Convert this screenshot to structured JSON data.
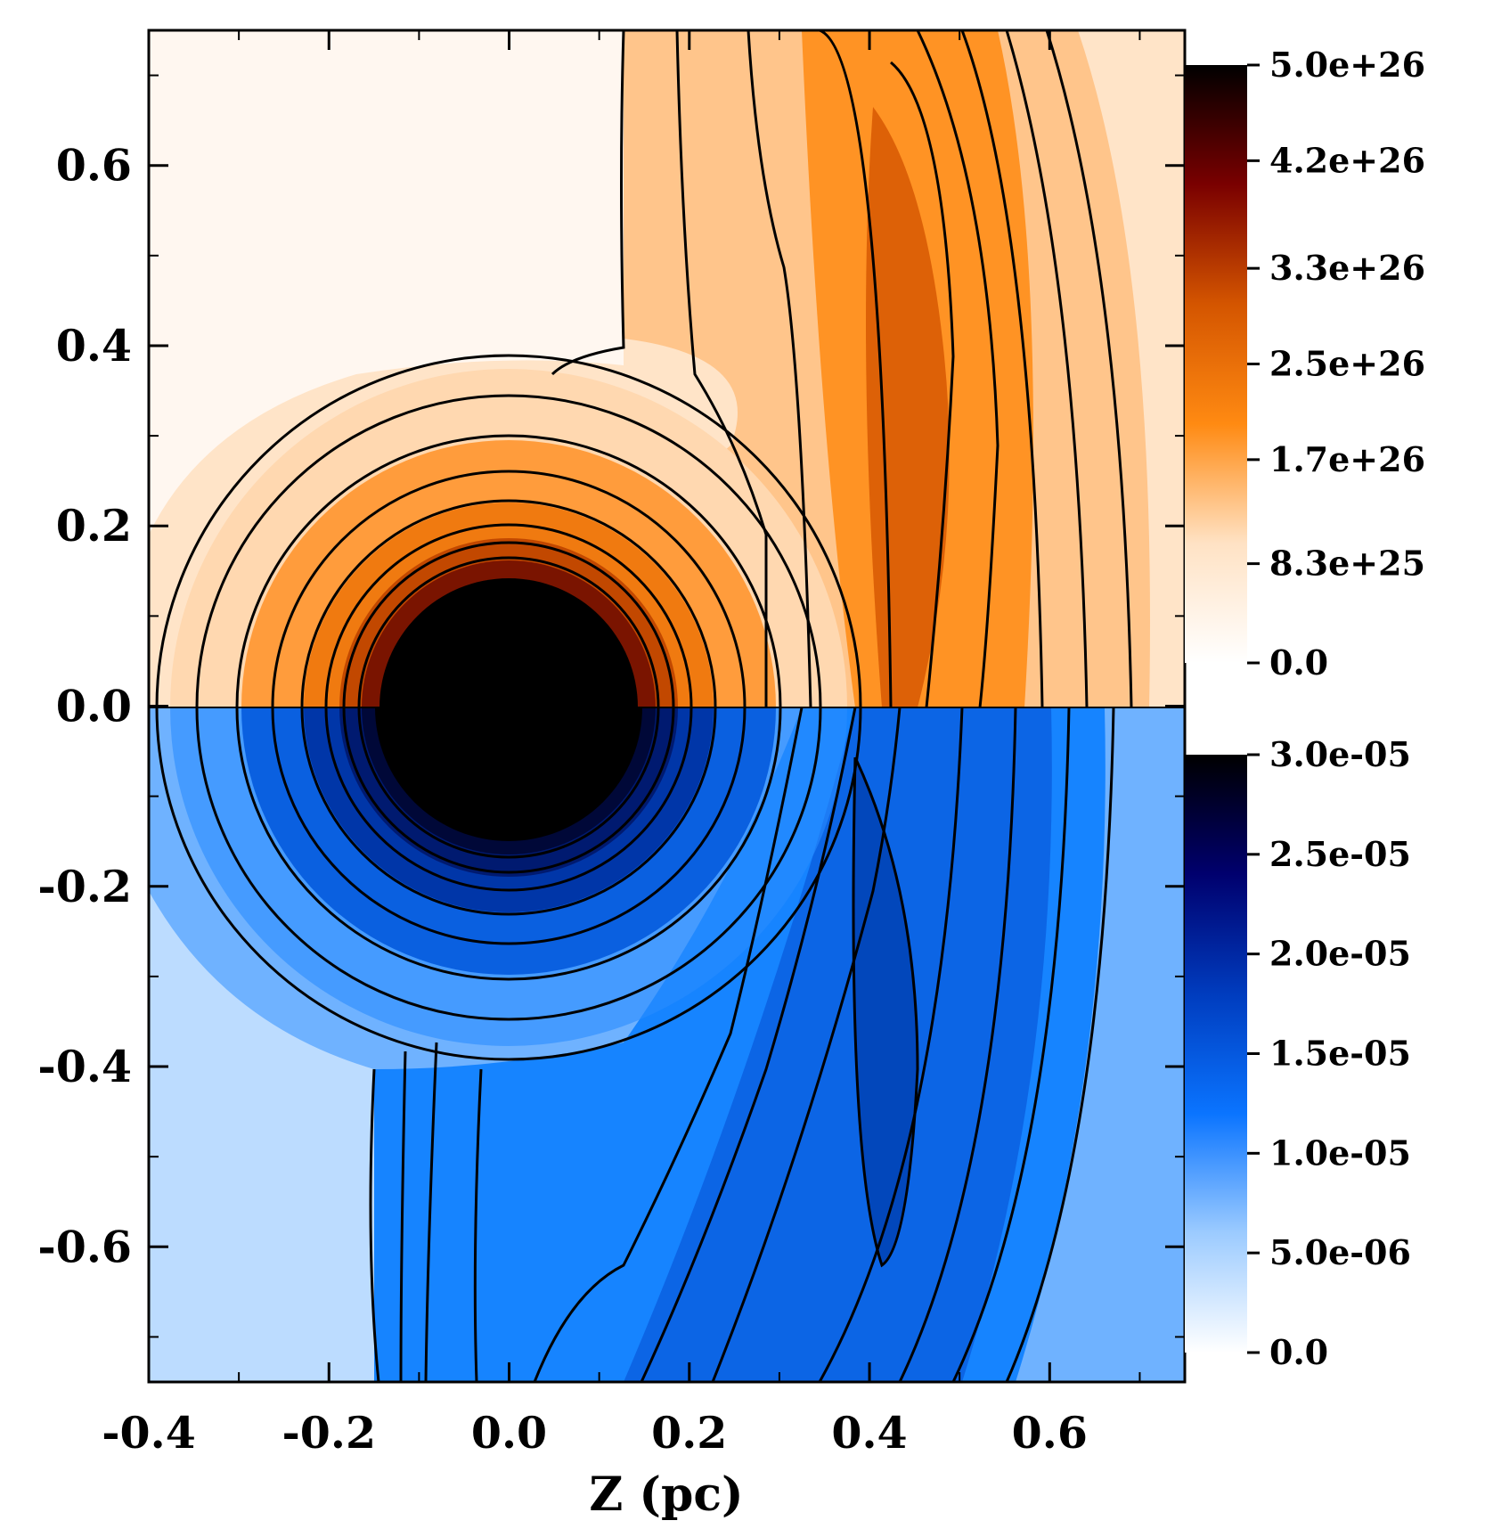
{
  "chart_data": {
    "type": "heatmap",
    "title": "",
    "xlabel": "Z (pc)",
    "ylabel": "",
    "xlim": [
      -0.4,
      0.75
    ],
    "ylim": [
      -0.75,
      0.75
    ],
    "x_ticks": [
      -0.4,
      -0.2,
      0.0,
      0.2,
      0.4,
      0.6
    ],
    "x_tick_labels": [
      "-0.4",
      "-0.2",
      "0.0",
      "0.2",
      "0.4",
      "0.6"
    ],
    "y_ticks": [
      0.6,
      0.4,
      0.2,
      0.0,
      -0.2,
      -0.4,
      -0.6
    ],
    "y_tick_labels": [
      "0.6",
      "0.4",
      "0.2",
      "0.0",
      "-0.2",
      "-0.4",
      "-0.6"
    ],
    "panels": [
      {
        "name": "upper",
        "y_range": [
          0.0,
          0.75
        ],
        "colormap": "orange",
        "colors": [
          "#ffffff",
          "#ffe2c4",
          "#ff8a12",
          "#d45500",
          "#7a0000",
          "#000000"
        ],
        "colorbar_range": [
          0.0,
          5e+26
        ],
        "colorbar_ticks": [
          5e+26,
          4.2e+26,
          3.3e+26,
          2.5e+26,
          1.7e+26,
          8.3e+25,
          0.0
        ],
        "colorbar_labels": [
          "5.0e+26",
          "4.2e+26",
          "3.3e+26",
          "2.5e+26",
          "1.7e+26",
          "8.3e+25",
          "0.0"
        ]
      },
      {
        "name": "lower",
        "y_range": [
          -0.75,
          0.0
        ],
        "colormap": "blue",
        "colors": [
          "#ffffff",
          "#9ccbff",
          "#0a74ff",
          "#003cbe",
          "#00006e",
          "#000000"
        ],
        "colorbar_range": [
          0.0,
          3e-05
        ],
        "colorbar_ticks": [
          3e-05,
          2.5e-05,
          2e-05,
          1.5e-05,
          1e-05,
          5e-06,
          0.0
        ],
        "colorbar_labels": [
          "3.0e-05",
          "2.5e-05",
          "2.0e-05",
          "1.5e-05",
          "1.0e-05",
          "5.0e-06",
          "0.0"
        ]
      }
    ],
    "features": {
      "core_center": [
        0.0,
        0.0
      ],
      "core_radius": 0.145,
      "shell_radius": 0.38,
      "ridge_x": 0.45,
      "grid": false
    }
  }
}
